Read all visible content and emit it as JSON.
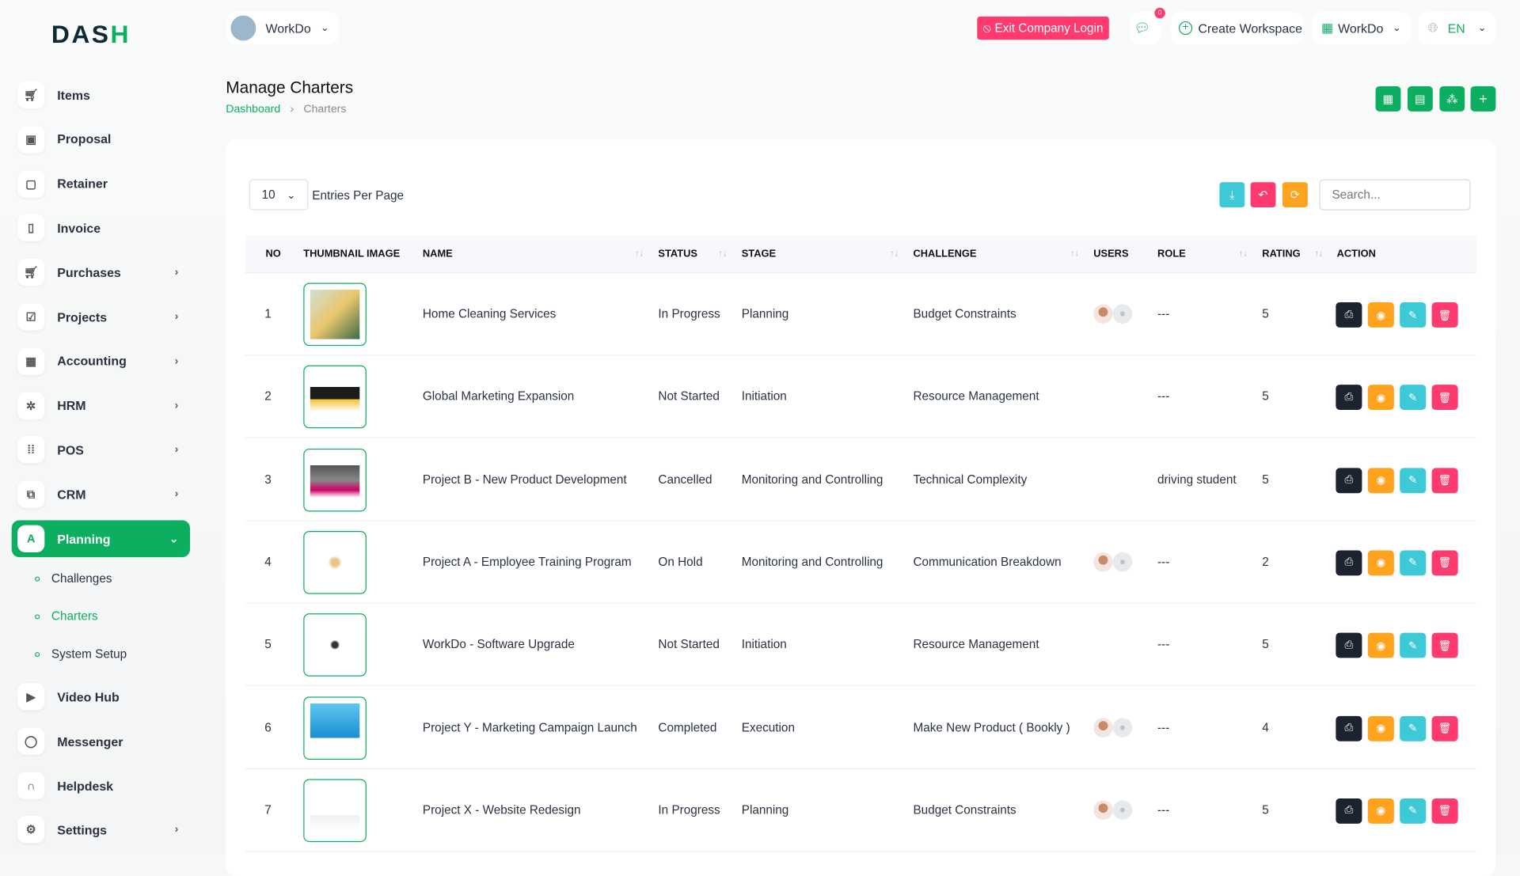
{
  "brand": {
    "logo_text": "DASH"
  },
  "header": {
    "workspace": "WorkDo",
    "exit_label": "Exit Company Login",
    "notifications": "0",
    "create_workspace": "Create Workspace",
    "workdo_menu": "WorkDo",
    "language": "EN"
  },
  "sidebar": {
    "items": [
      {
        "label": "Items",
        "icon": "cart-icon",
        "chev": false
      },
      {
        "label": "Proposal",
        "icon": "proposal-icon",
        "chev": false
      },
      {
        "label": "Retainer",
        "icon": "retainer-icon",
        "chev": false
      },
      {
        "label": "Invoice",
        "icon": "invoice-icon",
        "chev": false
      },
      {
        "label": "Purchases",
        "icon": "cart-icon",
        "chev": true
      },
      {
        "label": "Projects",
        "icon": "check-square-icon",
        "chev": true
      },
      {
        "label": "Accounting",
        "icon": "grid-icon",
        "chev": true
      },
      {
        "label": "HRM",
        "icon": "users-icon",
        "chev": true
      },
      {
        "label": "POS",
        "icon": "dots-grid-icon",
        "chev": true
      },
      {
        "label": "CRM",
        "icon": "crm-icon",
        "chev": true
      },
      {
        "label": "Planning",
        "icon": "planning-icon",
        "chev": true,
        "active": true
      }
    ],
    "subitems": [
      {
        "label": "Challenges"
      },
      {
        "label": "Charters",
        "current": true
      },
      {
        "label": "System Setup"
      }
    ],
    "items_after": [
      {
        "label": "Video Hub",
        "icon": "video-icon",
        "chev": false
      },
      {
        "label": "Messenger",
        "icon": "message-icon",
        "chev": false
      },
      {
        "label": "Helpdesk",
        "icon": "headset-icon",
        "chev": false
      },
      {
        "label": "Settings",
        "icon": "gear-icon",
        "chev": true
      }
    ]
  },
  "page": {
    "title": "Manage Charters",
    "breadcrumb": [
      "Dashboard",
      "Charters"
    ]
  },
  "table_controls": {
    "entries": "10",
    "entries_label": "Entries Per Page",
    "search_placeholder": "Search..."
  },
  "table": {
    "columns": [
      "NO",
      "THUMBNAIL IMAGE",
      "NAME",
      "STATUS",
      "STAGE",
      "CHALLENGE",
      "USERS",
      "ROLE",
      "RATING",
      "ACTION"
    ],
    "rows": [
      {
        "no": "1",
        "name": "Home Cleaning Services",
        "status": "In Progress",
        "stage": "Planning",
        "challenge": "Budget Constraints",
        "users": true,
        "role": "---",
        "rating": "5"
      },
      {
        "no": "2",
        "name": "Global Marketing Expansion",
        "status": "Not Started",
        "stage": "Initiation",
        "challenge": "Resource Management",
        "users": false,
        "role": "---",
        "rating": "5"
      },
      {
        "no": "3",
        "name": "Project B - New Product Development",
        "status": "Cancelled",
        "stage": "Monitoring and Controlling",
        "challenge": "Technical Complexity",
        "users": false,
        "role": "driving student",
        "rating": "5"
      },
      {
        "no": "4",
        "name": "Project A - Employee Training Program",
        "status": "On Hold",
        "stage": "Monitoring and Controlling",
        "challenge": "Communication Breakdown",
        "users": true,
        "role": "---",
        "rating": "2"
      },
      {
        "no": "5",
        "name": "WorkDo - Software Upgrade",
        "status": "Not Started",
        "stage": "Initiation",
        "challenge": "Resource Management",
        "users": false,
        "role": "---",
        "rating": "5"
      },
      {
        "no": "6",
        "name": "Project Y - Marketing Campaign Launch",
        "status": "Completed",
        "stage": "Execution",
        "challenge": "Make New Product ( Bookly )",
        "users": true,
        "role": "---",
        "rating": "4"
      },
      {
        "no": "7",
        "name": "Project X - Website Redesign",
        "status": "In Progress",
        "stage": "Planning",
        "challenge": "Budget Constraints",
        "users": true,
        "role": "---",
        "rating": "5"
      }
    ]
  },
  "colors": {
    "primary": "#0caf60",
    "danger": "#ff3a6e",
    "warning": "#ffa21d",
    "info": "#3ec9d6",
    "dark": "#1c232f"
  }
}
